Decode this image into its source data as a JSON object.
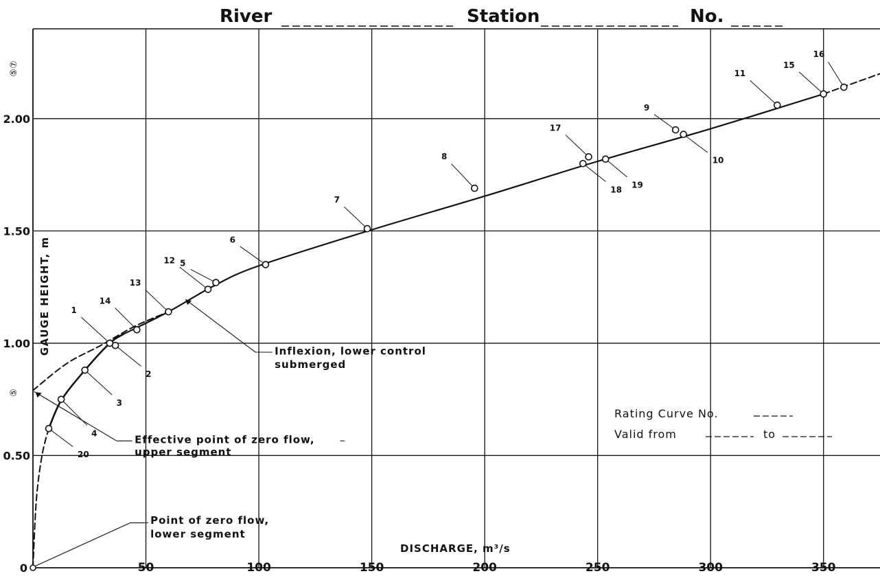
{
  "header": {
    "river_label": "River",
    "station_label": "Station",
    "no_label": "No."
  },
  "margin_marks": {
    "top": "⑤⑦",
    "middle": "⑤"
  },
  "chart_data": {
    "type": "scatter",
    "xlabel": "DISCHARGE, m³/s",
    "ylabel": "GAUGE HEIGHT, m",
    "xlim": [
      0,
      375
    ],
    "ylim": [
      0,
      2.4
    ],
    "grid": true,
    "x_ticks": [
      50,
      100,
      150,
      200,
      250,
      300,
      350
    ],
    "y_ticks": [
      0.5,
      1.0,
      1.5,
      2.0
    ],
    "x_tick_labels": [
      "50",
      "100",
      "150",
      "200",
      "250",
      "300",
      "350"
    ],
    "y_tick_labels": [
      "0.50",
      "1.00",
      "1.50",
      "2.00"
    ],
    "origin_label": "0",
    "series": [
      {
        "points": [
          {
            "label": "1",
            "x": 34.0,
            "y": 1.0
          },
          {
            "label": "2",
            "x": 36.5,
            "y": 0.99
          },
          {
            "label": "3",
            "x": 23.0,
            "y": 0.88
          },
          {
            "label": "4",
            "x": 12.5,
            "y": 0.75
          },
          {
            "label": "5",
            "x": 81.0,
            "y": 1.27
          },
          {
            "label": "6",
            "x": 103.0,
            "y": 1.35
          },
          {
            "label": "7",
            "x": 148.0,
            "y": 1.51
          },
          {
            "label": "8",
            "x": 195.5,
            "y": 1.69
          },
          {
            "label": "9",
            "x": 284.5,
            "y": 1.95
          },
          {
            "label": "10",
            "x": 288.0,
            "y": 1.93
          },
          {
            "label": "11",
            "x": 329.5,
            "y": 2.06
          },
          {
            "label": "12",
            "x": 77.5,
            "y": 1.24
          },
          {
            "label": "13",
            "x": 60.0,
            "y": 1.14
          },
          {
            "label": "14",
            "x": 46.0,
            "y": 1.06
          },
          {
            "label": "15",
            "x": 350.0,
            "y": 2.11
          },
          {
            "label": "16",
            "x": 359.0,
            "y": 2.14
          },
          {
            "label": "17",
            "x": 246.0,
            "y": 1.83
          },
          {
            "label": "18",
            "x": 243.5,
            "y": 1.8
          },
          {
            "label": "19",
            "x": 253.5,
            "y": 1.82
          },
          {
            "label": "20",
            "x": 7.0,
            "y": 0.62
          }
        ]
      }
    ],
    "curves": {
      "upper_solid": [
        [
          40,
          1.04
        ],
        [
          60,
          1.14
        ],
        [
          80,
          1.255
        ],
        [
          100,
          1.345
        ],
        [
          150,
          1.505
        ],
        [
          200,
          1.655
        ],
        [
          250,
          1.81
        ],
        [
          300,
          1.955
        ],
        [
          350,
          2.11
        ]
      ],
      "upper_dashed_ext": [
        [
          350,
          2.11
        ],
        [
          375,
          2.2
        ]
      ],
      "lower_solid": [
        [
          7,
          0.62
        ],
        [
          12.5,
          0.745
        ],
        [
          23,
          0.88
        ],
        [
          34,
          1.0
        ],
        [
          40,
          1.04
        ]
      ],
      "lower_dashed": [
        [
          0,
          0.0
        ],
        [
          1.5,
          0.3
        ],
        [
          4,
          0.5
        ],
        [
          7,
          0.62
        ]
      ],
      "upper_dashed_to_zero": [
        [
          0,
          0.79
        ],
        [
          15,
          0.91
        ],
        [
          30,
          0.99
        ],
        [
          45,
          1.075
        ],
        [
          60,
          1.14
        ]
      ]
    },
    "annotations": [
      {
        "line1": "Inflexion, lower control",
        "line2": "submerged"
      },
      {
        "line1": "Effective point of zero flow,",
        "line2": "upper segment"
      },
      {
        "line1": "Point of zero flow,",
        "line2": "lower segment"
      }
    ],
    "rating_box": {
      "line1": "Rating Curve   No.",
      "line2_a": "Valid from",
      "line2_b": "to"
    }
  }
}
